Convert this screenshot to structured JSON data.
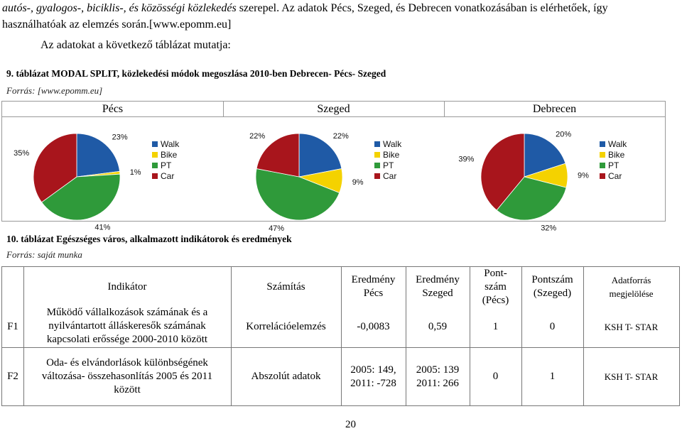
{
  "intro": {
    "line1_italic": "autós-, gyalogos-, biciklis-, és közösségi közlekedés",
    "line1_rest": " szerepel. Az adatok Pécs, Szeged, és Debrecen vonatkozásában is elérhetőek, így",
    "line2": "használhatóak az elemzés során.[www.epomm.eu]",
    "line3": "Az adatokat a következő táblázat mutatja:"
  },
  "table9": {
    "caption": "9. táblázat MODAL SPLIT, közlekedési módok megoszlása 2010-ben Debrecen- Pécs- Szeged",
    "source": "Forrás: [www.epomm.eu]",
    "headers": [
      "Pécs",
      "Szeged",
      "Debrecen"
    ]
  },
  "legend": [
    "Walk",
    "Bike",
    "PT",
    "Car"
  ],
  "colors": {
    "walk": "#1f5aa6",
    "bike": "#f4d200",
    "pt": "#2f9a3a",
    "car": "#a8151c"
  },
  "chart_data": [
    {
      "type": "pie",
      "title": "Pécs",
      "labels": [
        "Walk",
        "Bike",
        "PT",
        "Car"
      ],
      "values": [
        23,
        1,
        41,
        35
      ],
      "value_labels": [
        "23%",
        "1%",
        "41%",
        "35%"
      ]
    },
    {
      "type": "pie",
      "title": "Szeged",
      "labels": [
        "Walk",
        "Bike",
        "PT",
        "Car"
      ],
      "values": [
        22,
        9,
        47,
        22
      ],
      "value_labels": [
        "22%",
        "9%",
        "47%",
        "22%"
      ]
    },
    {
      "type": "pie",
      "title": "Debrecen",
      "labels": [
        "Walk",
        "Bike",
        "PT",
        "Car"
      ],
      "values": [
        20,
        9,
        32,
        39
      ],
      "value_labels": [
        "20%",
        "9%",
        "32%",
        "39%"
      ]
    }
  ],
  "table10": {
    "caption": "10. táblázat Egészséges város, alkalmazott indikátorok és eredmények",
    "source": "Forrás: saját munka",
    "headers": {
      "indikator": "Indikátor",
      "szamitas": "Számítás",
      "eredmeny_pecs": "Eredmény Pécs",
      "eredmeny_szeged": "Eredmény Szeged",
      "pontszam_pecs": "Pont- szám (Pécs)",
      "pontszam_szeged": "Pontszám (Szeged)",
      "adatforras": "Adatforrás megjelölése"
    },
    "rows": [
      {
        "id": "F1",
        "indikator": "Működő vállalkozások számának és a nyilvántartott álláskeresők számának kapcsolati erőssége 2000-2010 között",
        "szamitas": "Korrelációelemzés",
        "eredmeny_pecs": "-0,0083",
        "eredmeny_szeged": "0,59",
        "pontszam_pecs": "1",
        "pontszam_szeged": "0",
        "adatforras": "KSH T- STAR"
      },
      {
        "id": "F2",
        "indikator": "Oda- és elvándorlások különbségének változása- összehasonlítás 2005 és 2011 között",
        "szamitas": "Abszolút adatok",
        "eredmeny_pecs": "2005: 149, 2011: -728",
        "eredmeny_szeged": "2005: 139 2011: 266",
        "pontszam_pecs": "0",
        "pontszam_szeged": "1",
        "adatforras": "KSH T- STAR"
      }
    ]
  },
  "page_number": "20"
}
